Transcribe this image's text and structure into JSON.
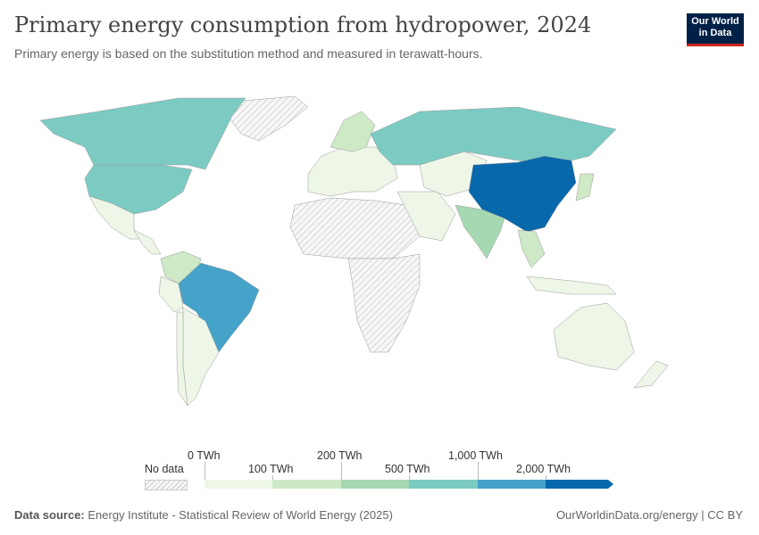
{
  "title": "Primary energy consumption from hydropower, 2024",
  "subtitle": "Primary energy is based on the substitution method and measured in terawatt-hours.",
  "logo": {
    "line1": "Our World",
    "line2": "in Data"
  },
  "legend": {
    "no_data": "No data",
    "labels": [
      "0 TWh",
      "100 TWh",
      "200 TWh",
      "500 TWh",
      "1,000 TWh",
      "2,000 TWh"
    ],
    "colors": [
      "#eef7e7",
      "#cde9c6",
      "#a6d9b2",
      "#7ccbc3",
      "#45a2c9",
      "#0868ac"
    ],
    "no_data_color": "#eeeeee"
  },
  "footer": {
    "source_label": "Data source:",
    "source": "Energy Institute - Statistical Review of World Energy (2025)",
    "right": "OurWorldinData.org/energy | CC BY"
  }
}
